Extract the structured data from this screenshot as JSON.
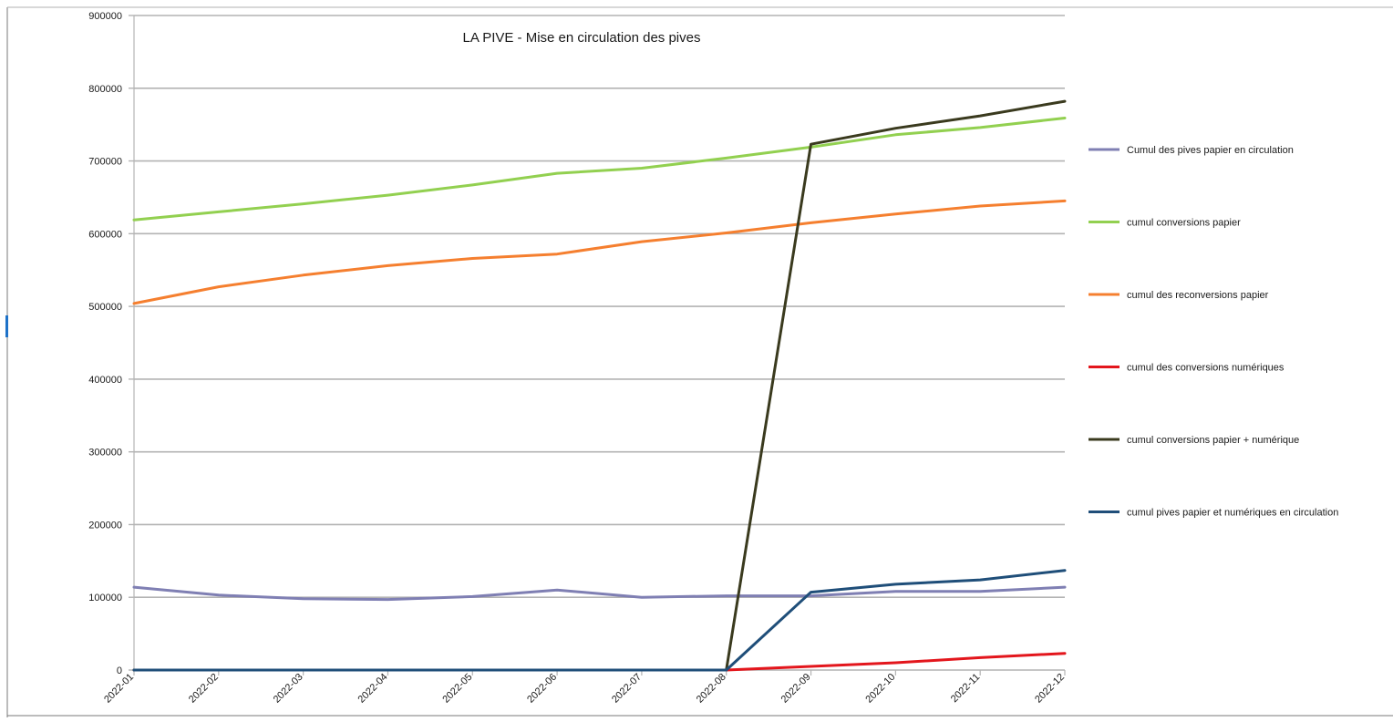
{
  "chart_data": {
    "type": "line",
    "title": "LA PIVE - Mise en circulation des pives",
    "xlabel": "",
    "ylabel": "",
    "ylim": [
      0,
      900000
    ],
    "yticks": [
      0,
      100000,
      200000,
      300000,
      400000,
      500000,
      600000,
      700000,
      800000,
      900000
    ],
    "grid": true,
    "legend_position": "right",
    "categories": [
      "2022-01",
      "2022-02",
      "2022-03",
      "2022-04",
      "2022-05",
      "2022-06",
      "2022-07",
      "2022-08",
      "2022-09",
      "2022-10",
      "2022-11",
      "2022-12"
    ],
    "series": [
      {
        "name": "Cumul des pives papier en circulation",
        "color": "#7f7fb3",
        "values": [
          114000,
          103000,
          98000,
          97000,
          101000,
          110000,
          100000,
          102000,
          102000,
          108000,
          108000,
          114000
        ]
      },
      {
        "name": "cumul conversions papier",
        "color": "#92d050",
        "values": [
          619000,
          630000,
          641000,
          653000,
          667000,
          683000,
          690000,
          704000,
          719000,
          736000,
          746000,
          759000
        ]
      },
      {
        "name": "cumul des reconversions papier",
        "color": "#f57f2f",
        "values": [
          504000,
          527000,
          543000,
          556000,
          566000,
          572000,
          589000,
          601000,
          615000,
          627000,
          638000,
          645000
        ]
      },
      {
        "name": "cumul des conversions numériques",
        "color": "#e3161c",
        "values": [
          0,
          0,
          0,
          0,
          0,
          0,
          0,
          0,
          5000,
          10000,
          17000,
          23000
        ]
      },
      {
        "name": "cumul conversions papier + numérique",
        "color": "#3a3a1e",
        "values": [
          0,
          0,
          0,
          0,
          0,
          0,
          0,
          0,
          723000,
          745000,
          762000,
          782000
        ]
      },
      {
        "name": "cumul pives papier et numériques en circulation",
        "color": "#1f4e79",
        "values": [
          0,
          0,
          0,
          0,
          0,
          0,
          0,
          0,
          107000,
          118000,
          124000,
          137000
        ]
      }
    ]
  }
}
